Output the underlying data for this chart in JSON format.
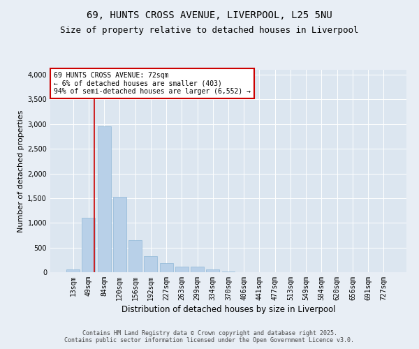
{
  "title_line1": "69, HUNTS CROSS AVENUE, LIVERPOOL, L25 5NU",
  "title_line2": "Size of property relative to detached houses in Liverpool",
  "xlabel": "Distribution of detached houses by size in Liverpool",
  "ylabel": "Number of detached properties",
  "categories": [
    "13sqm",
    "49sqm",
    "84sqm",
    "120sqm",
    "156sqm",
    "192sqm",
    "227sqm",
    "263sqm",
    "299sqm",
    "334sqm",
    "370sqm",
    "406sqm",
    "441sqm",
    "477sqm",
    "513sqm",
    "549sqm",
    "584sqm",
    "620sqm",
    "656sqm",
    "691sqm",
    "727sqm"
  ],
  "values": [
    50,
    1100,
    2950,
    1530,
    650,
    330,
    190,
    115,
    110,
    50,
    20,
    5,
    2,
    1,
    0,
    0,
    0,
    0,
    0,
    0,
    0
  ],
  "bar_color": "#b8d0e8",
  "bar_edge_color": "#90b8d8",
  "vline_x": 1.35,
  "vline_color": "#cc0000",
  "annotation_box_text": "69 HUNTS CROSS AVENUE: 72sqm\n← 6% of detached houses are smaller (403)\n94% of semi-detached houses are larger (6,552) →",
  "box_edge_color": "#cc0000",
  "ylim": [
    0,
    4100
  ],
  "background_color": "#e8eef5",
  "plot_bg_color": "#dce6f0",
  "footer_text": "Contains HM Land Registry data © Crown copyright and database right 2025.\nContains public sector information licensed under the Open Government Licence v3.0.",
  "title_fontsize": 10,
  "subtitle_fontsize": 9,
  "xlabel_fontsize": 8.5,
  "ylabel_fontsize": 8,
  "tick_fontsize": 7,
  "ann_fontsize": 7,
  "footer_fontsize": 6
}
